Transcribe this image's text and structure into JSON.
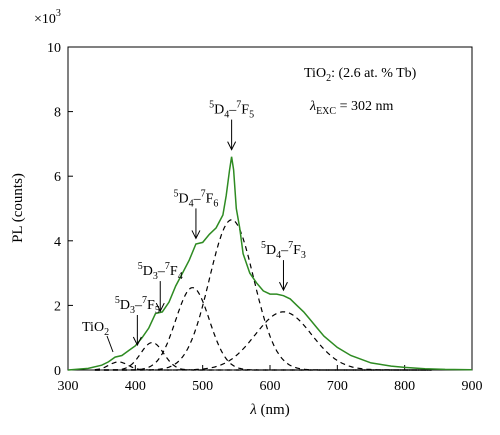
{
  "chart_data": {
    "type": "line",
    "title": "",
    "xlabel": {
      "italic": "λ",
      "rest": " (nm)"
    },
    "ylabel": "PL (counts)",
    "y_multiplier": {
      "base": "×10",
      "exp": "3"
    },
    "xlim": [
      300,
      900
    ],
    "ylim": [
      0,
      10
    ],
    "x_ticks": [
      300,
      400,
      500,
      600,
      700,
      800,
      900
    ],
    "y_ticks": [
      0,
      2,
      4,
      6,
      8,
      10
    ],
    "grid": false,
    "colors": {
      "measured": "#2e8b22",
      "fit": "#000000"
    },
    "measured": {
      "x": [
        300,
        330,
        350,
        360,
        370,
        380,
        390,
        400,
        410,
        420,
        430,
        440,
        450,
        460,
        470,
        480,
        490,
        500,
        510,
        520,
        530,
        535,
        540,
        543,
        546,
        550,
        555,
        560,
        570,
        580,
        590,
        600,
        610,
        620,
        630,
        640,
        650,
        660,
        670,
        680,
        700,
        720,
        750,
        780,
        800,
        830,
        860,
        900
      ],
      "y": [
        0.0,
        0.05,
        0.15,
        0.25,
        0.4,
        0.45,
        0.6,
        0.75,
        1.0,
        1.3,
        1.75,
        1.8,
        2.1,
        2.6,
        3.0,
        3.4,
        3.9,
        3.95,
        4.2,
        4.4,
        4.8,
        5.4,
        6.2,
        6.6,
        6.2,
        5.0,
        4.4,
        3.6,
        3.0,
        2.7,
        2.45,
        2.35,
        2.35,
        2.3,
        2.2,
        2.0,
        1.8,
        1.55,
        1.3,
        1.05,
        0.7,
        0.45,
        0.22,
        0.12,
        0.08,
        0.04,
        0.02,
        0.01
      ]
    },
    "fit_components": [
      {
        "center": 375,
        "amplitude": 0.25,
        "width": 14
      },
      {
        "center": 425,
        "amplitude": 0.85,
        "width": 17
      },
      {
        "center": 485,
        "amplitude": 2.55,
        "width": 25
      },
      {
        "center": 543,
        "amplitude": 4.65,
        "width": 33
      },
      {
        "center": 620,
        "amplitude": 1.8,
        "width": 42
      }
    ],
    "annotations": {
      "sample": {
        "pre": "TiO",
        "sub": "2",
        "post": ": (2.6 at. % Tb)"
      },
      "excitation": {
        "italic": "λ",
        "sub": "EXC",
        "post": " = 302 nm"
      },
      "tio2_label": {
        "pre": "TiO",
        "sub": "2"
      },
      "peaks": [
        {
          "sup1": "5",
          "p1": "D",
          "n1": "3",
          "sup2": "7",
          "p2": "F",
          "n2": "5",
          "x": 403,
          "y": 0.65
        },
        {
          "sup1": "5",
          "p1": "D",
          "n1": "3",
          "sup2": "7",
          "p2": "F",
          "n2": "4",
          "x": 437,
          "y": 1.7
        },
        {
          "sup1": "5",
          "p1": "D",
          "n1": "4",
          "sup2": "7",
          "p2": "F",
          "n2": "6",
          "x": 490,
          "y": 3.95
        },
        {
          "sup1": "5",
          "p1": "D",
          "n1": "4",
          "sup2": "7",
          "p2": "F",
          "n2": "5",
          "x": 543,
          "y": 6.7
        },
        {
          "sup1": "5",
          "p1": "D",
          "n1": "4",
          "sup2": "7",
          "p2": "F",
          "n2": "3",
          "x": 620,
          "y": 2.35
        }
      ]
    }
  }
}
